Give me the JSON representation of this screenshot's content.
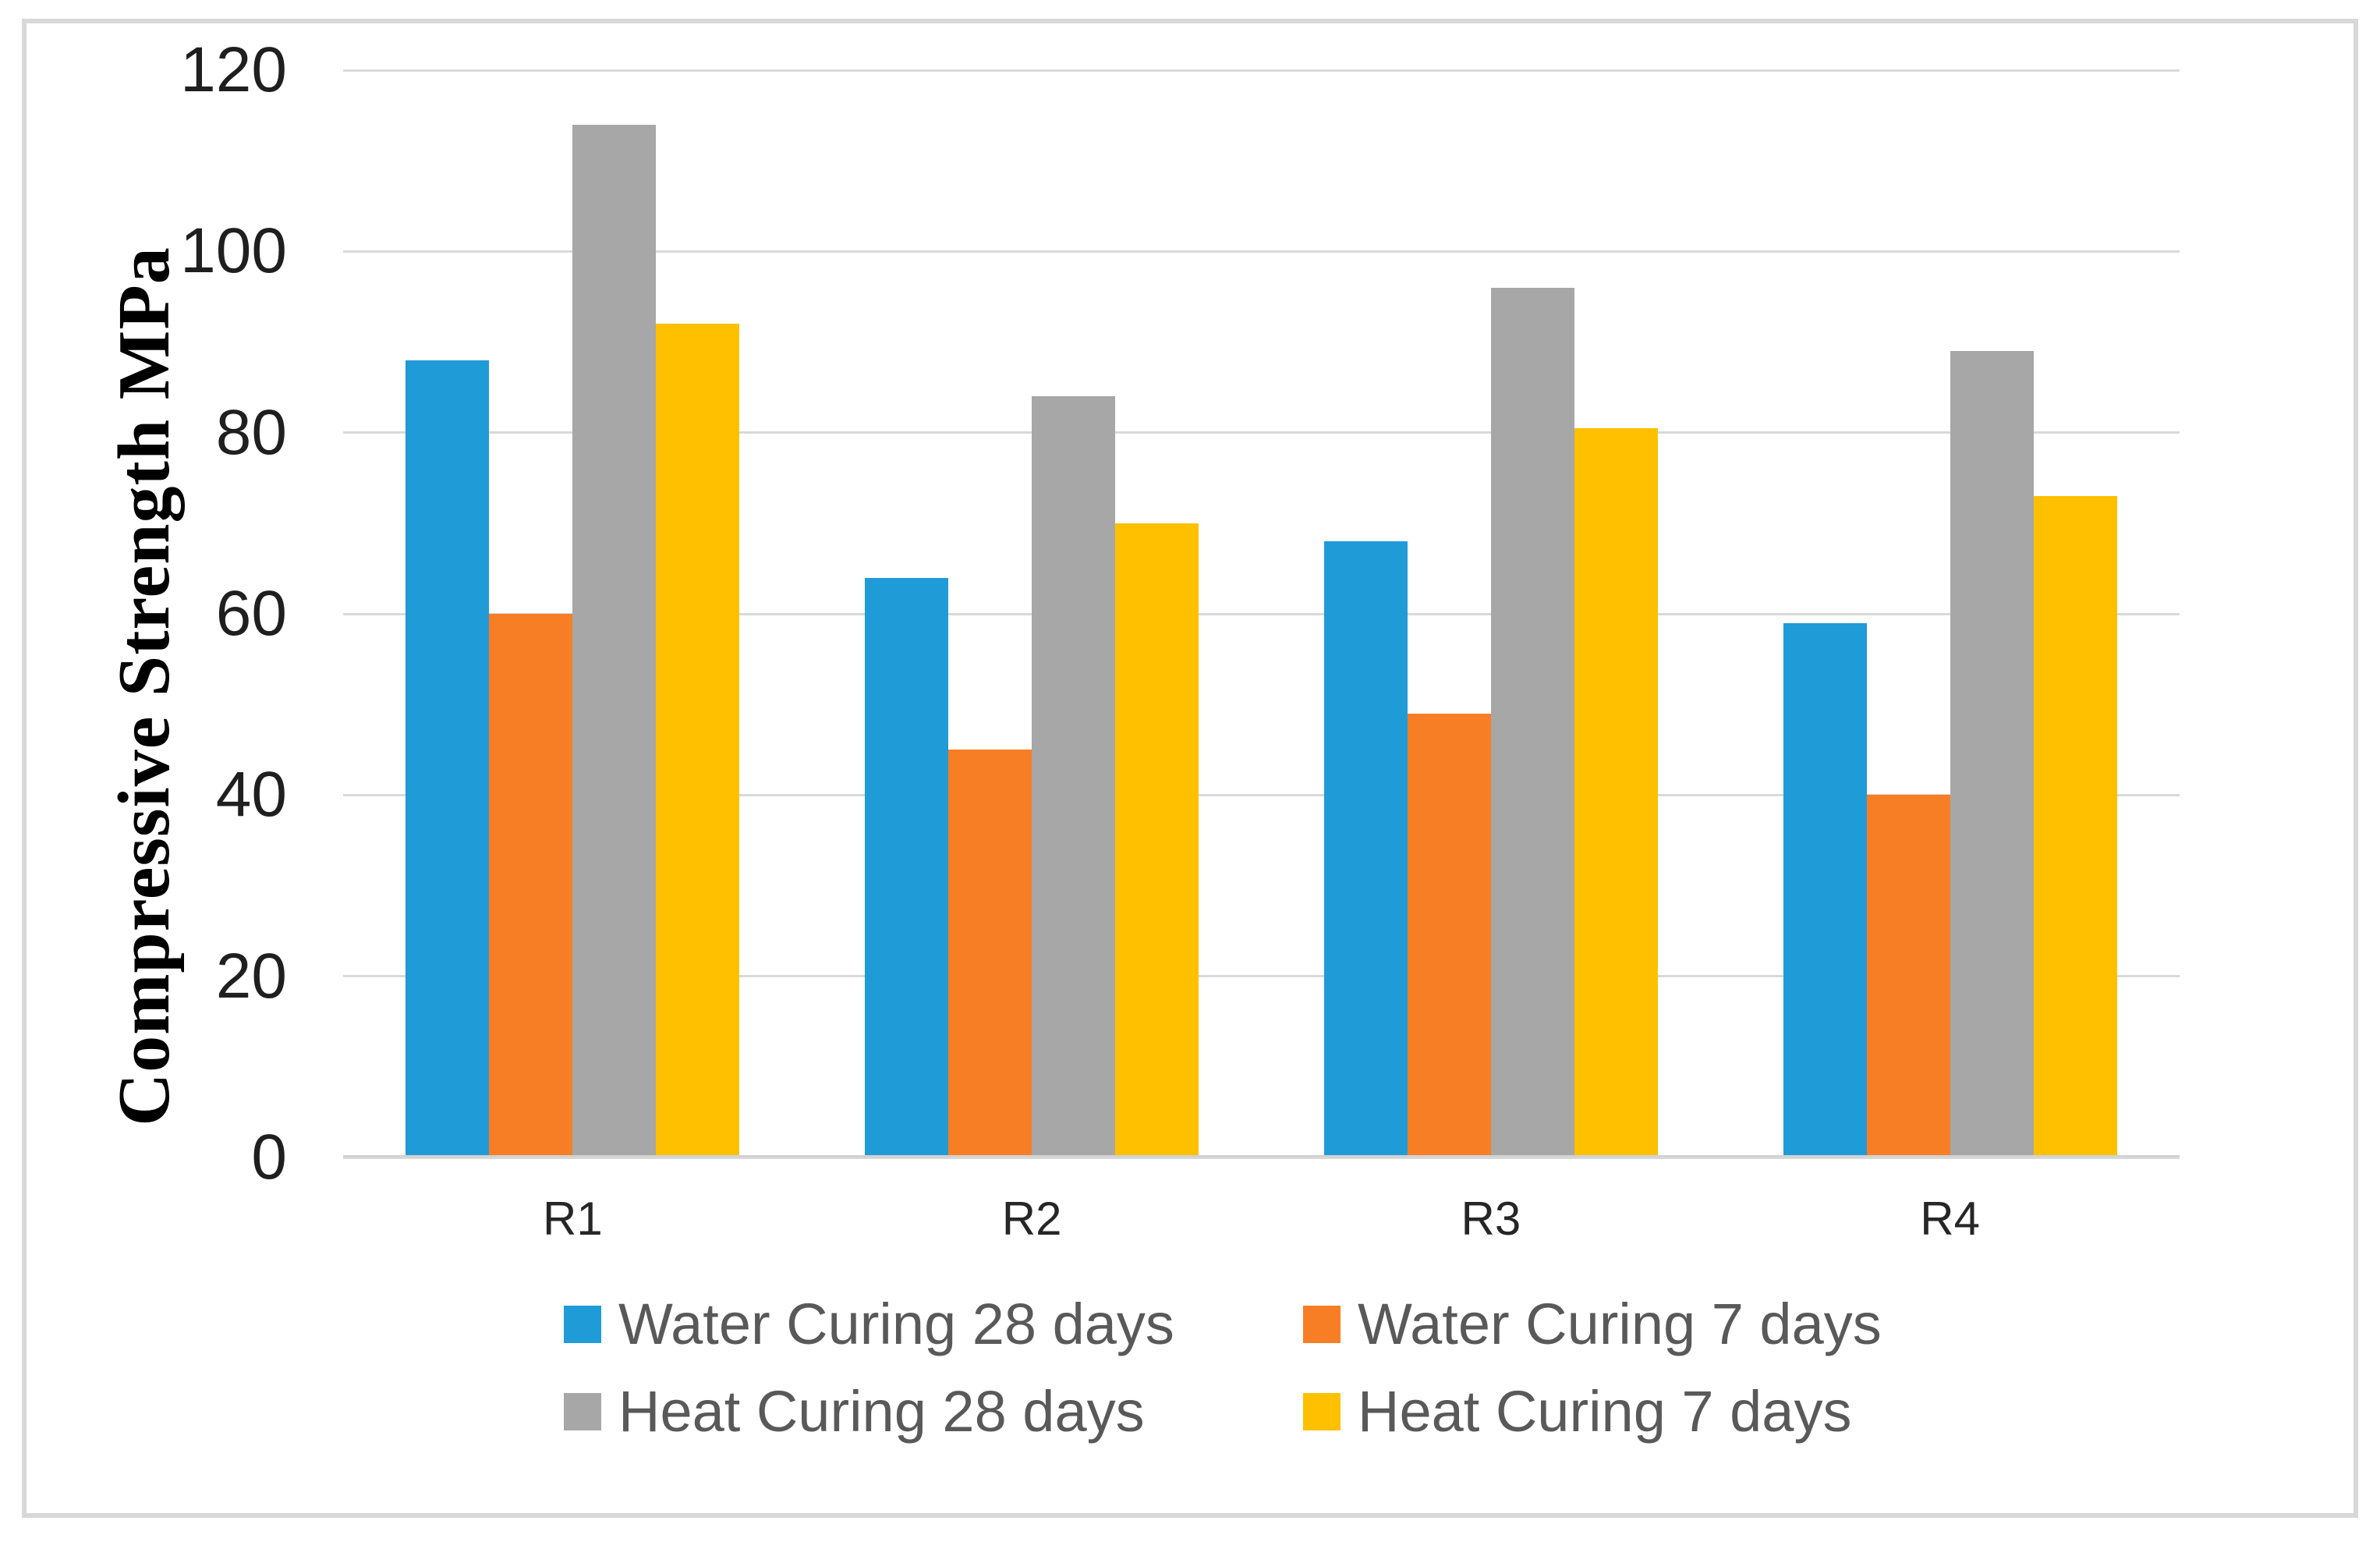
{
  "chart_data": {
    "type": "bar",
    "title": "",
    "xlabel": "",
    "ylabel": "Compressive Strength MPa",
    "ylim": [
      0,
      120
    ],
    "yticks": [
      0,
      20,
      40,
      60,
      80,
      100,
      120
    ],
    "grid": "horizontal",
    "legend_position": "bottom",
    "categories": [
      "R1",
      "R2",
      "R3",
      "R4"
    ],
    "series": [
      {
        "name": "Water Curing 28 days",
        "color": "#1F9BD8",
        "values": [
          88,
          64,
          68,
          59
        ]
      },
      {
        "name": "Water Curing 7 days",
        "color": "#F87E25",
        "values": [
          60,
          45,
          49,
          40
        ]
      },
      {
        "name": "Heat Curing 28 days",
        "color": "#A7A7A7",
        "values": [
          114,
          84,
          96,
          89
        ]
      },
      {
        "name": "Heat Curing 7 days",
        "color": "#FFC000",
        "values": [
          92,
          70,
          80.5,
          73
        ]
      }
    ],
    "colors": {
      "gridline": "#D9D9D9",
      "axis_line": "#D2D2D2",
      "border": "#D8D8D8",
      "tick_label": "#1F1F1F",
      "category_label": "#262626",
      "legend_text": "#595959",
      "axis_title": "#000000",
      "background": "#FFFFFF"
    }
  }
}
